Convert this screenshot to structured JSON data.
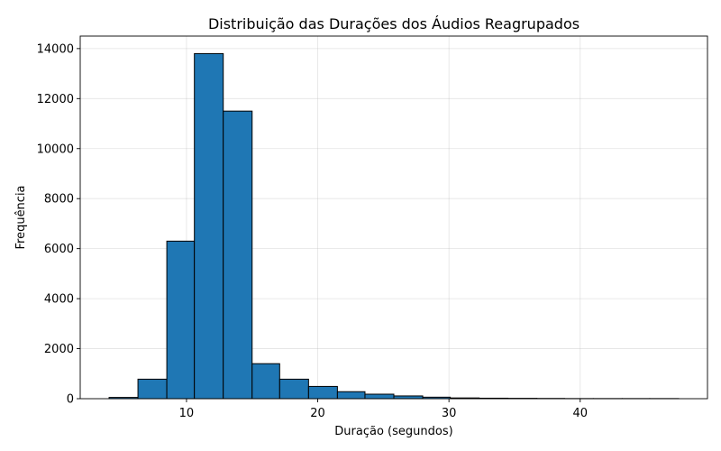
{
  "chart_data": {
    "type": "bar",
    "title": "Distribuição das Durações dos Áudios Reagrupados",
    "xlabel": "Duração (segundos)",
    "ylabel": "Frequência",
    "xlim": [
      1.9,
      49.7
    ],
    "ylim": [
      0,
      14500
    ],
    "xticks": [
      10,
      20,
      30,
      40
    ],
    "yticks": [
      0,
      2000,
      4000,
      6000,
      8000,
      10000,
      12000,
      14000
    ],
    "grid": true,
    "bar_color": "#1f77b4",
    "edge_color": "#000000",
    "bin_edges": [
      4.1,
      6.3,
      8.5,
      10.6,
      12.8,
      15.0,
      17.1,
      19.3,
      21.5,
      23.6,
      25.8,
      28.0,
      30.1,
      32.3,
      34.5,
      36.7,
      38.8,
      41.0,
      43.2,
      45.3,
      47.5
    ],
    "values": [
      50,
      780,
      6300,
      13800,
      11500,
      1400,
      780,
      490,
      280,
      180,
      110,
      60,
      30,
      20,
      15,
      10,
      5,
      5,
      5,
      5
    ]
  }
}
